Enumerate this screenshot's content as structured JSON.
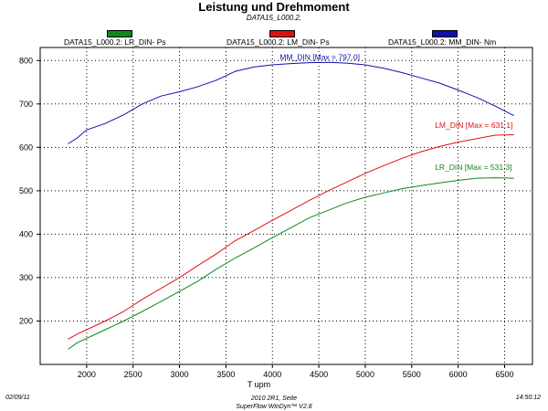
{
  "title": "Leistung und Drehmoment",
  "subtitle": "DATA15_L000.2,",
  "legend": [
    {
      "label": "DATA15_L000.2: LR_DIN- Ps",
      "color": "#0a8a1a"
    },
    {
      "label": "DATA15_L000.2: LM_DIN- Ps",
      "color": "#e01010"
    },
    {
      "label": "DATA15_L000.2: MM_DIN- Nm",
      "color": "#1010b0"
    }
  ],
  "footer": {
    "date": "02/09/11",
    "center_line1": "2010 2R1, Seite",
    "center_line2": "SuperFlow WinDyn™ V2.8",
    "time": "14:50:12"
  },
  "chart_data": {
    "type": "line",
    "title": "Leistung und Drehmoment",
    "subtitle": "DATA15_L000.2,",
    "xlabel": "T   upm",
    "ylabel": "",
    "xlim": [
      1500,
      6800
    ],
    "ylim": [
      100,
      830
    ],
    "x_ticks": [
      2000,
      2500,
      3000,
      3500,
      4000,
      4500,
      5000,
      5500,
      6000,
      6500
    ],
    "y_ticks": [
      200,
      300,
      400,
      500,
      600,
      700,
      800
    ],
    "grid": true,
    "legend_position": "top",
    "series": [
      {
        "name": "DATA15_L000.2: LR_DIN- Ps",
        "color": "#0a8a1a",
        "annotation": "LR_DIN [Max = 531.3]",
        "points": [
          [
            1800,
            135
          ],
          [
            1900,
            150
          ],
          [
            2000,
            160
          ],
          [
            2200,
            180
          ],
          [
            2400,
            200
          ],
          [
            2600,
            222
          ],
          [
            2800,
            245
          ],
          [
            3000,
            268
          ],
          [
            3200,
            292
          ],
          [
            3400,
            320
          ],
          [
            3600,
            345
          ],
          [
            3800,
            368
          ],
          [
            4000,
            392
          ],
          [
            4200,
            415
          ],
          [
            4400,
            438
          ],
          [
            4600,
            455
          ],
          [
            4800,
            472
          ],
          [
            5000,
            485
          ],
          [
            5200,
            495
          ],
          [
            5400,
            505
          ],
          [
            5600,
            512
          ],
          [
            5800,
            518
          ],
          [
            6000,
            524
          ],
          [
            6200,
            529
          ],
          [
            6400,
            530
          ],
          [
            6600,
            529
          ]
        ]
      },
      {
        "name": "DATA15_L000.2: LM_DIN- Ps",
        "color": "#e01010",
        "annotation": "LM_DIN [Max = 631.1]",
        "points": [
          [
            1800,
            158
          ],
          [
            1900,
            170
          ],
          [
            2000,
            180
          ],
          [
            2200,
            200
          ],
          [
            2400,
            222
          ],
          [
            2600,
            250
          ],
          [
            2800,
            275
          ],
          [
            3000,
            300
          ],
          [
            3200,
            328
          ],
          [
            3400,
            355
          ],
          [
            3600,
            385
          ],
          [
            3800,
            408
          ],
          [
            4000,
            432
          ],
          [
            4200,
            455
          ],
          [
            4400,
            478
          ],
          [
            4600,
            500
          ],
          [
            4800,
            520
          ],
          [
            5000,
            540
          ],
          [
            5200,
            558
          ],
          [
            5400,
            575
          ],
          [
            5600,
            590
          ],
          [
            5800,
            602
          ],
          [
            6000,
            612
          ],
          [
            6200,
            620
          ],
          [
            6400,
            628
          ],
          [
            6600,
            629
          ]
        ]
      },
      {
        "name": "DATA15_L000.2: MM_DIN- Nm",
        "color": "#1010b0",
        "annotation": "MM_DIN [Max = 797.0]",
        "points": [
          [
            1800,
            608
          ],
          [
            1900,
            622
          ],
          [
            2000,
            640
          ],
          [
            2200,
            655
          ],
          [
            2400,
            675
          ],
          [
            2600,
            700
          ],
          [
            2800,
            718
          ],
          [
            3000,
            728
          ],
          [
            3200,
            740
          ],
          [
            3400,
            755
          ],
          [
            3600,
            775
          ],
          [
            3800,
            785
          ],
          [
            4000,
            790
          ],
          [
            4200,
            793
          ],
          [
            4400,
            795
          ],
          [
            4600,
            796
          ],
          [
            4800,
            794
          ],
          [
            5000,
            790
          ],
          [
            5200,
            782
          ],
          [
            5400,
            772
          ],
          [
            5600,
            760
          ],
          [
            5800,
            748
          ],
          [
            6000,
            732
          ],
          [
            6200,
            715
          ],
          [
            6400,
            695
          ],
          [
            6600,
            673
          ]
        ]
      }
    ]
  }
}
